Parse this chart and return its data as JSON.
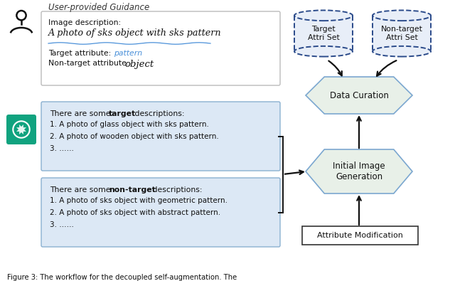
{
  "bg_color": "#ffffff",
  "box_light_blue": "#dce8f5",
  "box_border_blue": "#8ab0d0",
  "hex_fill": "#e8f0e8",
  "hex_border": "#7ba7d0",
  "drum_fill": "#e8eef8",
  "drum_border": "#2a4a8a",
  "chatgpt_green": "#10a37f",
  "arrow_color": "#111111",
  "text_color": "#111111",
  "blue_text": "#4a90d9",
  "title": "User-provided Guidance",
  "image_desc_label": "Image description:",
  "image_desc_main": "A photo of sks object with sks pattern",
  "target_attr_label": "Target attribute: ",
  "target_attr_value": "pattern",
  "nontarget_attr_label": "Non-target attribute:  ",
  "nontarget_attr_value": "object",
  "target_items": [
    "1. A photo of glass object with sks pattern.",
    "2. A photo of wooden object with sks pattern.",
    "3. ……"
  ],
  "nontarget_items": [
    "1. A photo of sks object with geometric pattern.",
    "2. A photo of sks object with abstract pattern.",
    "3. ……"
  ],
  "label_data_curation": "Data Curation",
  "label_initial_image": "Initial Image\nGeneration",
  "label_attr_modification": "Attribute Modification",
  "label_target_attri": "Target\nAttri Set",
  "label_nontarget_attri": "Non-target\nAttri Set",
  "fig_caption": "Figure 3: The workflow for the decoupled self-augmentation. The"
}
